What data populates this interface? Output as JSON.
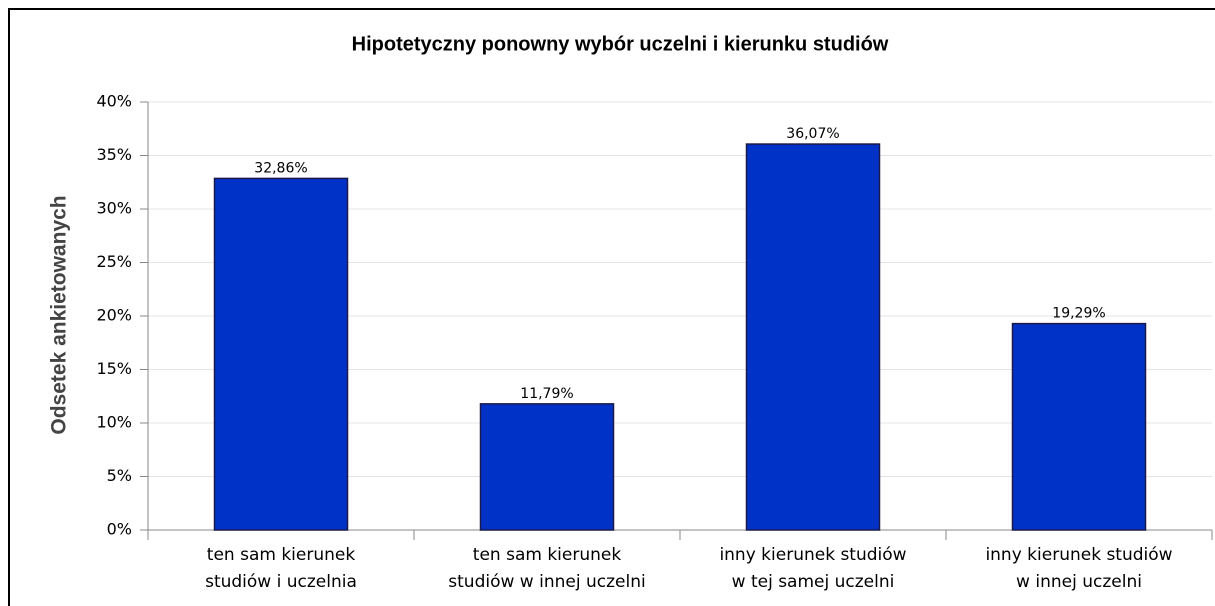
{
  "chart_data": {
    "type": "bar",
    "title": "Hipotetyczny ponowny wybór uczelni i kierunku studiów",
    "y_label": "Odsetek ankietowanych",
    "categories": [
      [
        "ten sam kierunek",
        "studiów i uczelnia"
      ],
      [
        "ten sam kierunek",
        "studiów w innej uczelni"
      ],
      [
        "inny kierunek studiów",
        "w tej samej uczelni"
      ],
      [
        "inny kierunek studiów",
        "w innej uczelni"
      ]
    ],
    "values": [
      32.86,
      11.79,
      36.07,
      19.29
    ],
    "value_labels": [
      "32,86%",
      "11,79%",
      "36,07%",
      "19,29%"
    ],
    "color": "#0032c8",
    "ylim": [
      0,
      40
    ],
    "yticks": [
      {
        "value": 0,
        "label": "0%"
      },
      {
        "value": 5,
        "label": "5%"
      },
      {
        "value": 10,
        "label": "10%"
      },
      {
        "value": 15,
        "label": "15%"
      },
      {
        "value": 20,
        "label": "20%"
      },
      {
        "value": 25,
        "label": "25%"
      },
      {
        "value": 30,
        "label": "30%"
      },
      {
        "value": 35,
        "label": "35%"
      },
      {
        "value": 40,
        "label": "40%"
      }
    ],
    "grid": true
  }
}
